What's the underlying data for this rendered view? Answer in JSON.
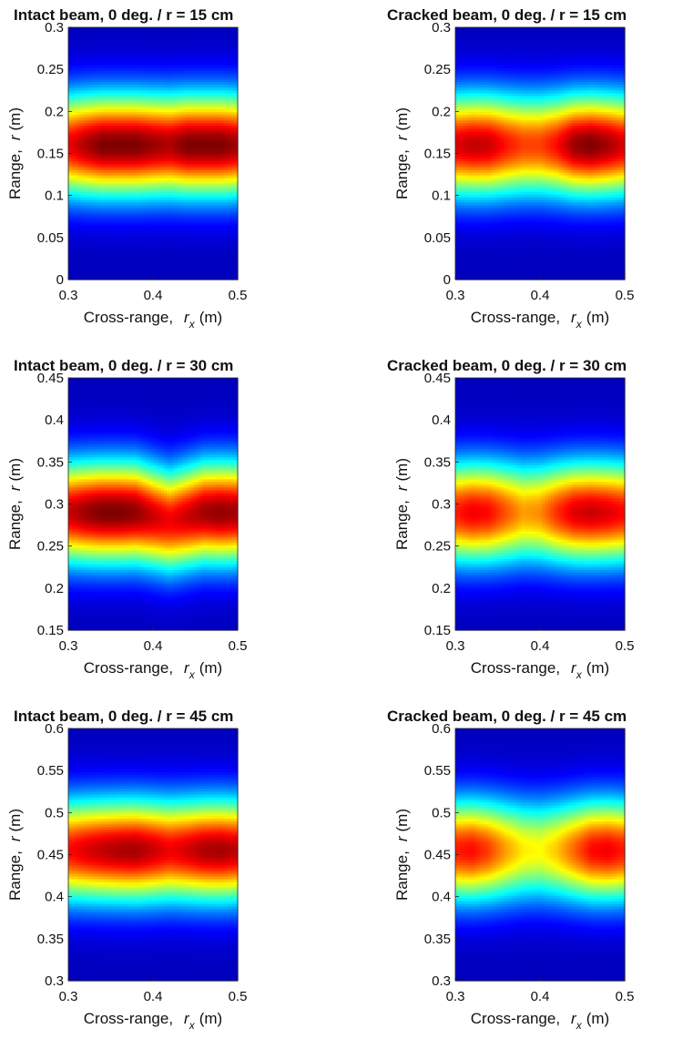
{
  "chart_data": [
    {
      "type": "heatmap",
      "title": "Intact beam, 0 deg. / r = 15 cm",
      "xlabel": "Cross-range,",
      "xlabel_var": "r",
      "xlabel_sub": "x",
      "xlabel_unit": "(m)",
      "ylabel": "Range,",
      "ylabel_var": "r",
      "ylabel_unit": "(m)",
      "xlim": [
        0.3,
        0.5
      ],
      "ylim": [
        0,
        0.3
      ],
      "xticks": [
        "0.3",
        "0.4",
        "0.5"
      ],
      "yticks": [
        "0",
        "0.05",
        "0.1",
        "0.15",
        "0.2",
        "0.25",
        "0.3"
      ],
      "peak_range": 0.16,
      "profile_x": [
        0.3,
        0.32,
        0.34,
        0.36,
        0.38,
        0.4,
        0.42,
        0.44,
        0.46,
        0.48,
        0.5
      ],
      "profile_intensity": [
        0.88,
        0.95,
        1.0,
        1.0,
        1.0,
        0.97,
        0.95,
        1.0,
        1.0,
        1.0,
        0.96
      ],
      "profile_center": [
        0.16,
        0.16,
        0.16,
        0.16,
        0.16,
        0.16,
        0.16,
        0.16,
        0.16,
        0.16,
        0.16
      ]
    },
    {
      "type": "heatmap",
      "title": "Cracked beam, 0 deg. / r = 15 cm",
      "xlabel": "Cross-range,",
      "xlabel_var": "r",
      "xlabel_sub": "x",
      "xlabel_unit": "(m)",
      "ylabel": "Range,",
      "ylabel_var": "r",
      "ylabel_unit": "(m)",
      "xlim": [
        0.3,
        0.5
      ],
      "ylim": [
        0,
        0.3
      ],
      "xticks": [
        "0.3",
        "0.4",
        "0.5"
      ],
      "yticks": [
        "0",
        "0.05",
        "0.1",
        "0.15",
        "0.2",
        "0.25",
        "0.3"
      ],
      "peak_range": 0.16,
      "profile_x": [
        0.3,
        0.32,
        0.34,
        0.36,
        0.38,
        0.4,
        0.42,
        0.44,
        0.46,
        0.48,
        0.5
      ],
      "profile_intensity": [
        0.9,
        0.93,
        0.92,
        0.85,
        0.8,
        0.8,
        0.86,
        0.97,
        1.0,
        0.96,
        0.9
      ],
      "profile_center": [
        0.16,
        0.16,
        0.16,
        0.16,
        0.16,
        0.16,
        0.16,
        0.16,
        0.16,
        0.16,
        0.16
      ]
    },
    {
      "type": "heatmap",
      "title": "Intact beam, 0 deg. / r = 30 cm",
      "xlabel": "Cross-range,",
      "xlabel_var": "r",
      "xlabel_sub": "x",
      "xlabel_unit": "(m)",
      "ylabel": "Range,",
      "ylabel_var": "r",
      "ylabel_unit": "(m)",
      "xlim": [
        0.3,
        0.5
      ],
      "ylim": [
        0.15,
        0.45
      ],
      "xticks": [
        "0.3",
        "0.4",
        "0.5"
      ],
      "yticks": [
        "0.15",
        "0.2",
        "0.25",
        "0.3",
        "0.35",
        "0.4",
        "0.45"
      ],
      "peak_range": 0.29,
      "profile_x": [
        0.3,
        0.32,
        0.34,
        0.36,
        0.38,
        0.4,
        0.42,
        0.44,
        0.46,
        0.48,
        0.5
      ],
      "profile_intensity": [
        0.92,
        0.97,
        1.0,
        1.0,
        0.98,
        0.92,
        0.88,
        0.92,
        0.96,
        0.98,
        0.96
      ],
      "profile_center": [
        0.29,
        0.29,
        0.29,
        0.29,
        0.29,
        0.285,
        0.28,
        0.285,
        0.29,
        0.29,
        0.29
      ]
    },
    {
      "type": "heatmap",
      "title": "Cracked beam, 0 deg. / r = 30 cm",
      "xlabel": "Cross-range,",
      "xlabel_var": "r",
      "xlabel_sub": "x",
      "xlabel_unit": "(m)",
      "ylabel": "Range,",
      "ylabel_var": "r",
      "ylabel_unit": "(m)",
      "xlim": [
        0.3,
        0.5
      ],
      "ylim": [
        0.15,
        0.45
      ],
      "xticks": [
        "0.3",
        "0.4",
        "0.5"
      ],
      "yticks": [
        "0.15",
        "0.2",
        "0.25",
        "0.3",
        "0.35",
        "0.4",
        "0.45"
      ],
      "peak_range": 0.29,
      "profile_x": [
        0.3,
        0.32,
        0.34,
        0.36,
        0.38,
        0.4,
        0.42,
        0.44,
        0.46,
        0.48,
        0.5
      ],
      "profile_intensity": [
        0.84,
        0.88,
        0.86,
        0.78,
        0.7,
        0.72,
        0.82,
        0.9,
        0.92,
        0.9,
        0.86
      ],
      "profile_center": [
        0.29,
        0.29,
        0.29,
        0.29,
        0.29,
        0.29,
        0.29,
        0.29,
        0.29,
        0.29,
        0.29
      ]
    },
    {
      "type": "heatmap",
      "title": "Intact beam, 0 deg. / r = 45 cm",
      "xlabel": "Cross-range,",
      "xlabel_var": "r",
      "xlabel_sub": "x",
      "xlabel_unit": "(m)",
      "ylabel": "Range,",
      "ylabel_var": "r",
      "ylabel_unit": "(m)",
      "xlim": [
        0.3,
        0.5
      ],
      "ylim": [
        0.3,
        0.6
      ],
      "xticks": [
        "0.3",
        "0.4",
        "0.5"
      ],
      "yticks": [
        "0.3",
        "0.35",
        "0.4",
        "0.45",
        "0.5",
        "0.55",
        "0.6"
      ],
      "peak_range": 0.455,
      "profile_x": [
        0.3,
        0.32,
        0.34,
        0.36,
        0.38,
        0.4,
        0.42,
        0.44,
        0.46,
        0.48,
        0.5
      ],
      "profile_intensity": [
        0.86,
        0.9,
        0.93,
        0.95,
        0.96,
        0.92,
        0.88,
        0.91,
        0.95,
        0.96,
        0.93
      ],
      "profile_center": [
        0.455,
        0.455,
        0.455,
        0.455,
        0.455,
        0.455,
        0.455,
        0.455,
        0.455,
        0.455,
        0.455
      ]
    },
    {
      "type": "heatmap",
      "title": "Cracked beam, 0 deg. / r = 45 cm",
      "xlabel": "Cross-range,",
      "xlabel_var": "r",
      "xlabel_sub": "x",
      "xlabel_unit": "(m)",
      "ylabel": "Range,",
      "ylabel_var": "r",
      "ylabel_unit": "(m)",
      "xlim": [
        0.3,
        0.5
      ],
      "ylim": [
        0.3,
        0.6
      ],
      "xticks": [
        "0.3",
        "0.4",
        "0.5"
      ],
      "yticks": [
        "0.3",
        "0.35",
        "0.4",
        "0.45",
        "0.5",
        "0.55",
        "0.6"
      ],
      "peak_range": 0.455,
      "profile_x": [
        0.3,
        0.32,
        0.34,
        0.36,
        0.38,
        0.4,
        0.42,
        0.44,
        0.46,
        0.48,
        0.5
      ],
      "profile_intensity": [
        0.84,
        0.86,
        0.8,
        0.7,
        0.62,
        0.6,
        0.66,
        0.76,
        0.86,
        0.88,
        0.84
      ],
      "profile_center": [
        0.455,
        0.455,
        0.455,
        0.455,
        0.455,
        0.455,
        0.455,
        0.455,
        0.455,
        0.455,
        0.455
      ]
    }
  ],
  "colormap": [
    "#00007f",
    "#0000ff",
    "#007fff",
    "#00ffff",
    "#7fff7f",
    "#ffff00",
    "#ff7f00",
    "#ff0000",
    "#7f0000"
  ]
}
